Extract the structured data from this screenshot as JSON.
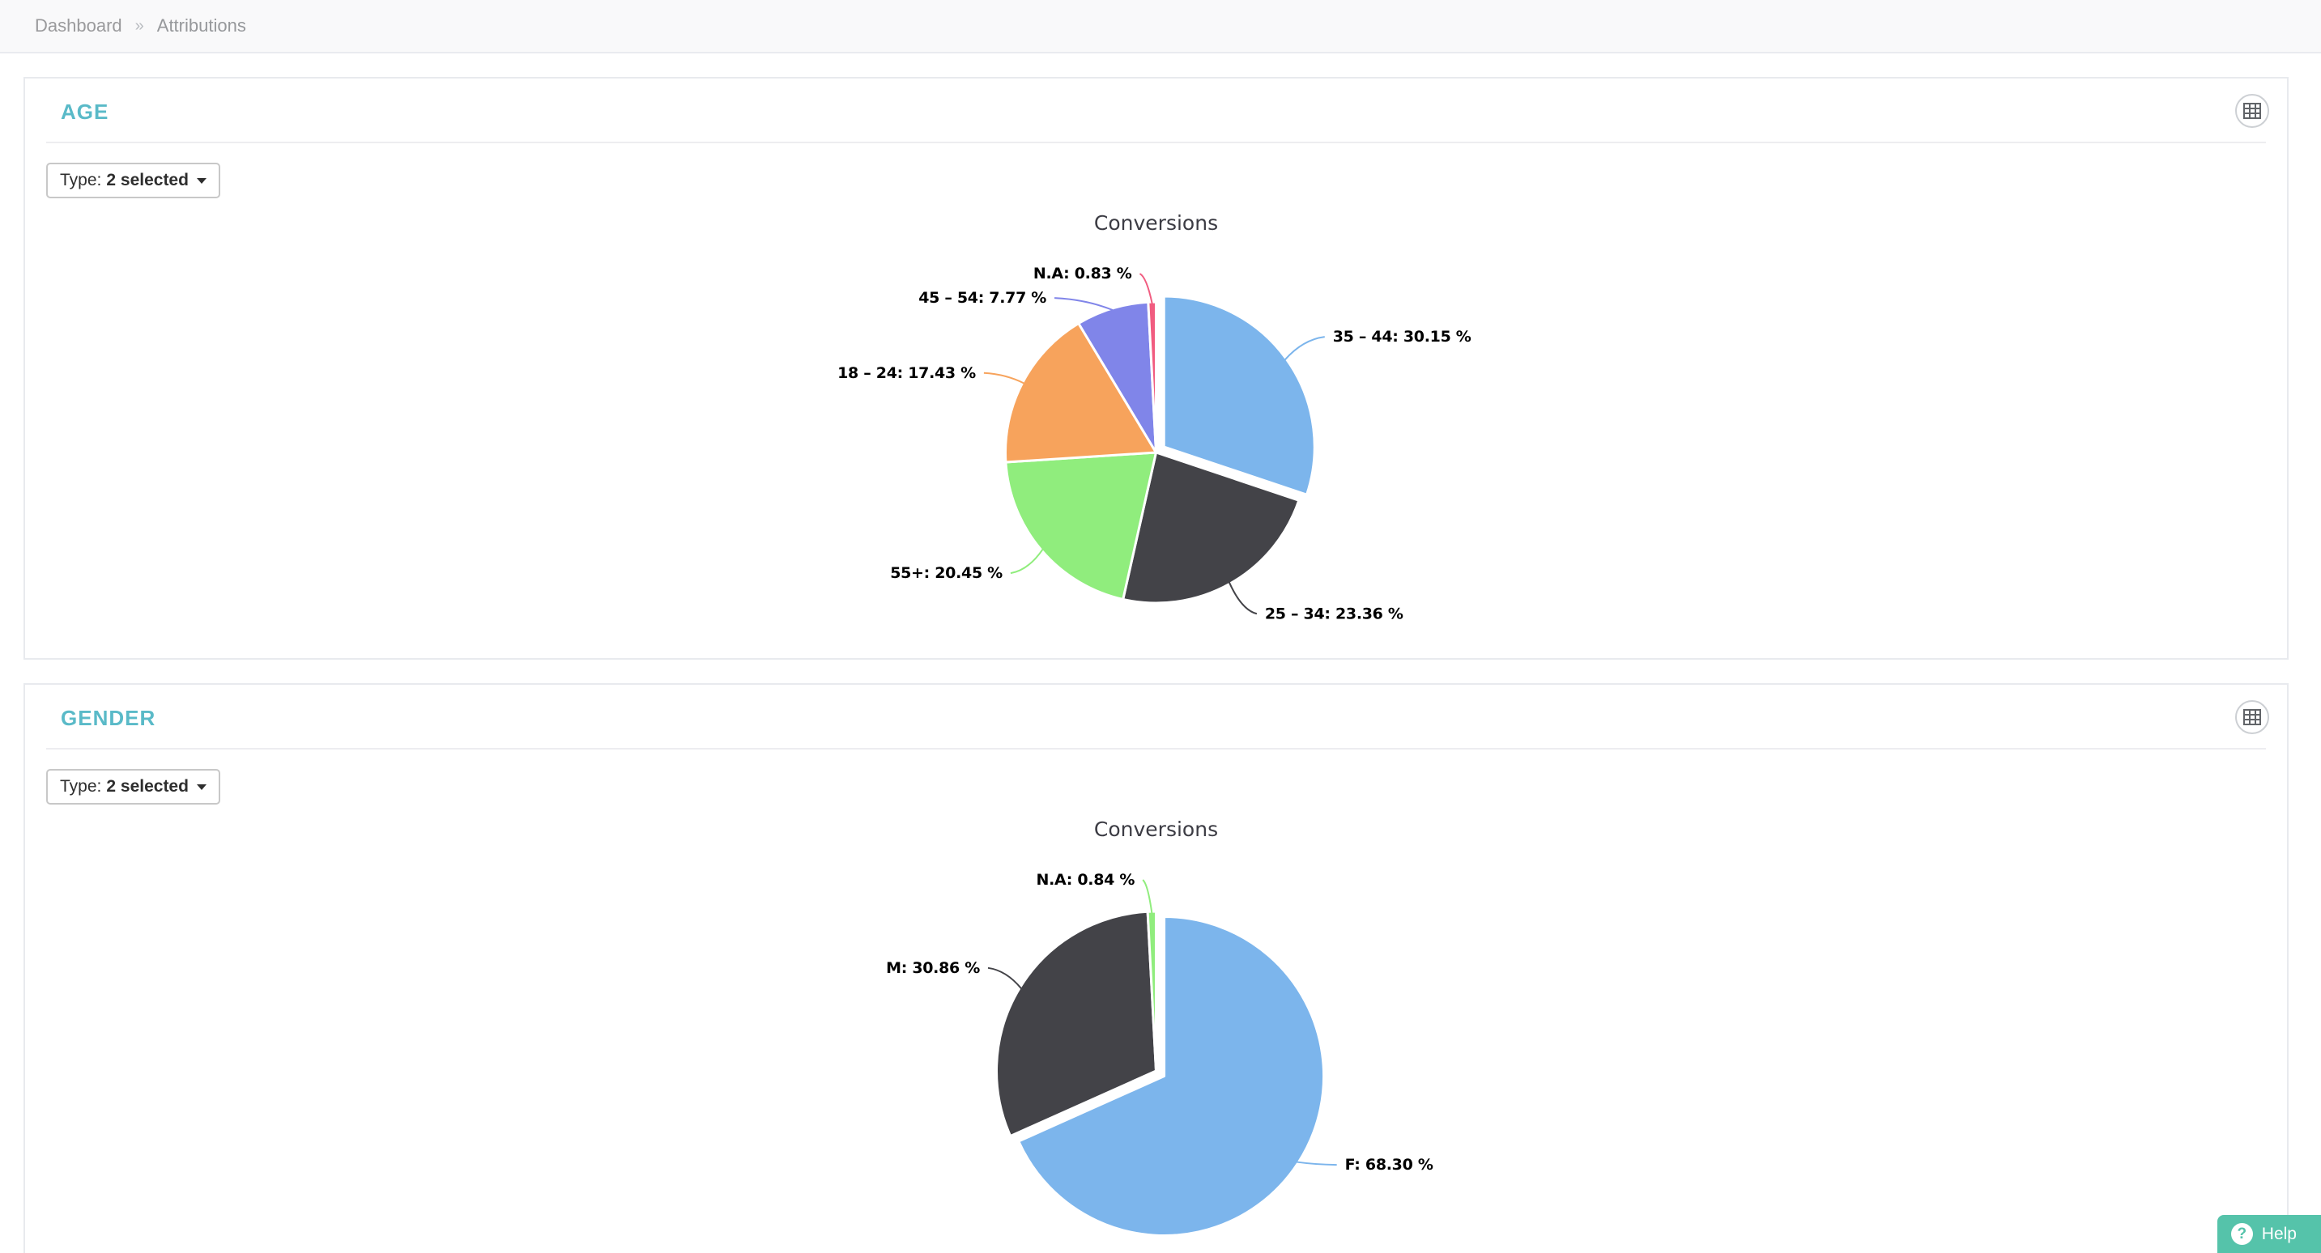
{
  "breadcrumb": {
    "items": [
      "Dashboard",
      "Attributions"
    ],
    "separator": "»"
  },
  "panels": [
    {
      "title": "AGE",
      "filter": {
        "label": "Type:",
        "value": "2 selected"
      },
      "chart_index": 0
    },
    {
      "title": "GENDER",
      "filter": {
        "label": "Type:",
        "value": "2 selected"
      },
      "chart_index": 1
    }
  ],
  "help": {
    "label": "Help",
    "icon_glyph": "?"
  },
  "colors": {
    "panel_title_accent": "#5abac8",
    "help_button": "#55c3aa",
    "panel_border": "#e8eaee",
    "chart_title_text": "#3c3c44",
    "data_label_text": "#000000"
  },
  "chart_data": [
    {
      "type": "pie",
      "title": "Conversions",
      "unit": "%",
      "direction": "clockwise",
      "start_angle_deg": 0,
      "label_format": "{label}: {value} %",
      "slices": [
        {
          "label": "35 – 44",
          "value": 30.15,
          "color": "#7cb5ec",
          "offset": true
        },
        {
          "label": "25 – 34",
          "value": 23.36,
          "color": "#434348"
        },
        {
          "label": "55+",
          "value": 20.45,
          "color": "#90ed7d"
        },
        {
          "label": "18 – 24",
          "value": 17.43,
          "color": "#f7a35c"
        },
        {
          "label": "45 – 54",
          "value": 7.77,
          "color": "#8085e9"
        },
        {
          "label": "N.A",
          "value": 0.83,
          "color": "#f15c80"
        }
      ]
    },
    {
      "type": "pie",
      "title": "Conversions",
      "unit": "%",
      "direction": "clockwise",
      "start_angle_deg": 0,
      "label_format": "{label}: {value} %",
      "slices": [
        {
          "label": "F",
          "value": 68.3,
          "color": "#7cb5ec",
          "offset": true
        },
        {
          "label": "M",
          "value": 30.86,
          "color": "#434348"
        },
        {
          "label": "N.A",
          "value": 0.84,
          "color": "#90ed7d"
        }
      ]
    }
  ]
}
